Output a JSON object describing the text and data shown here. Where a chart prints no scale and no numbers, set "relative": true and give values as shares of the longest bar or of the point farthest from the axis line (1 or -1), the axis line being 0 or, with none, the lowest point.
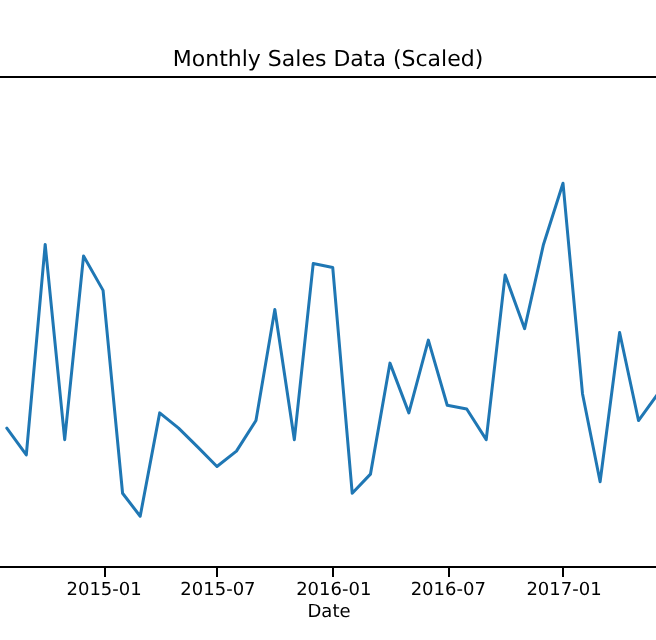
{
  "chart_data": {
    "type": "line",
    "title": "Monthly Sales Data (Scaled)",
    "xlabel": "Date",
    "relative": true,
    "grid": false,
    "x": [
      "2014-08",
      "2014-09",
      "2014-10",
      "2014-11",
      "2014-12",
      "2015-01",
      "2015-02",
      "2015-03",
      "2015-04",
      "2015-05",
      "2015-06",
      "2015-07",
      "2015-08",
      "2015-09",
      "2015-10",
      "2015-11",
      "2015-12",
      "2016-01",
      "2016-02",
      "2016-03",
      "2016-04",
      "2016-05",
      "2016-06",
      "2016-07",
      "2016-08",
      "2016-09",
      "2016-10",
      "2016-11",
      "2016-12",
      "2017-01",
      "2017-02",
      "2017-03",
      "2017-04",
      "2017-05",
      "2017-06"
    ],
    "xlim": [
      "2014-07-18",
      "2017-06-01"
    ],
    "xticks": [
      {
        "value": "2015-01",
        "label": "2015-01"
      },
      {
        "value": "2015-07",
        "label": "2015-07"
      },
      {
        "value": "2016-01",
        "label": "2016-01"
      },
      {
        "value": "2016-07",
        "label": "2016-07"
      },
      {
        "value": "2017-01",
        "label": "2017-01"
      }
    ],
    "series": [
      {
        "color": "#1f77b4",
        "values": [
          0.36,
          0.29,
          0.84,
          0.33,
          0.81,
          0.72,
          0.19,
          0.13,
          0.4,
          0.36,
          0.31,
          0.26,
          0.3,
          0.38,
          0.67,
          0.33,
          0.79,
          0.78,
          0.19,
          0.24,
          0.53,
          0.4,
          0.59,
          0.42,
          0.41,
          0.33,
          0.76,
          0.62,
          0.84,
          1,
          0.45,
          0.22,
          0.61,
          0.38,
          0.45
        ]
      }
    ]
  }
}
